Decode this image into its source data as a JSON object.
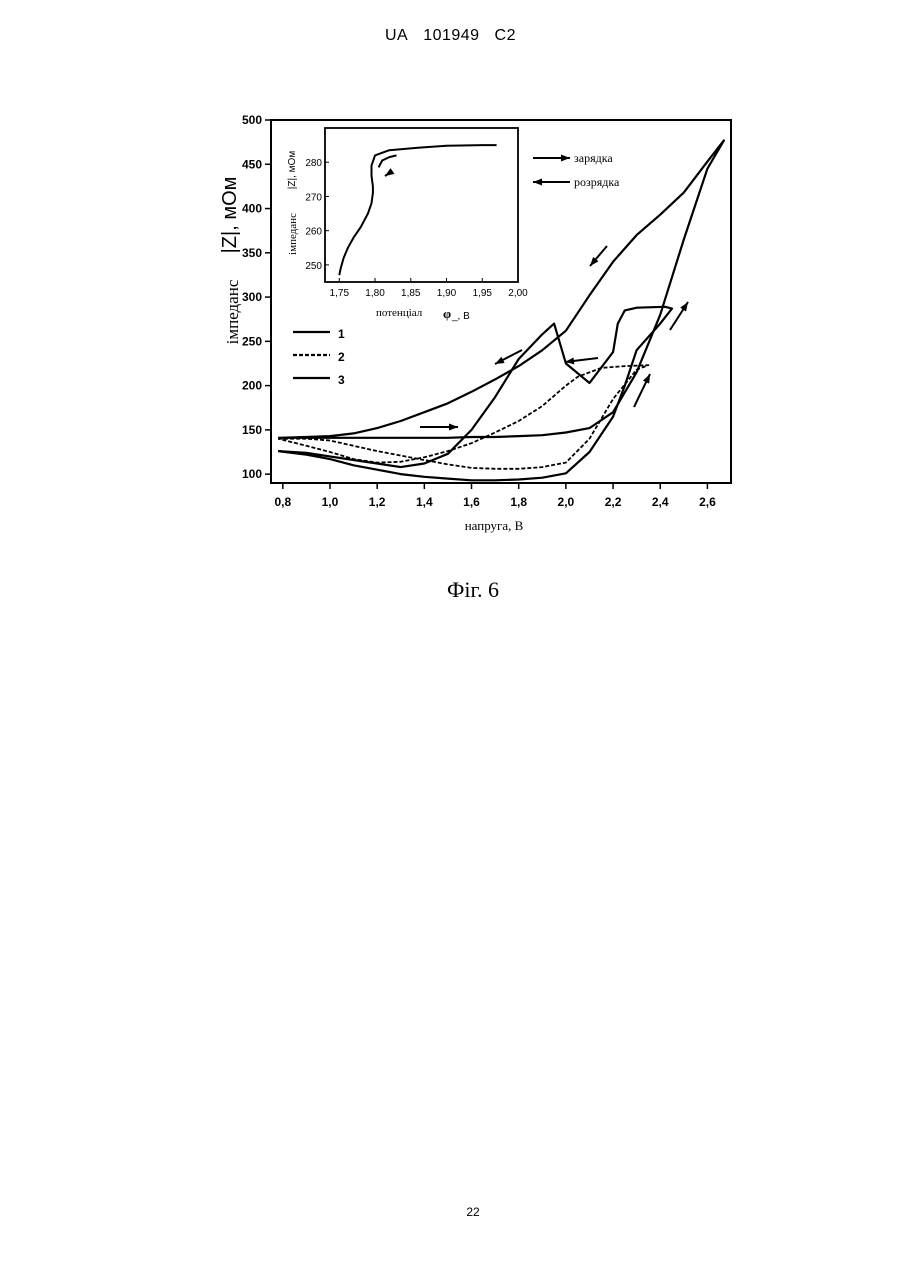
{
  "header": {
    "country": "UA",
    "number": "101949",
    "kind": "C2"
  },
  "caption": "Фіг. 6",
  "page_number": "22",
  "chart_data": [
    {
      "type": "line",
      "xlabel": "напруга, В",
      "ylabel_part1": "імпеданс",
      "ylabel_part2": "|Z|, мОм",
      "xlim": [
        0.75,
        2.7
      ],
      "ylim": [
        90,
        500
      ],
      "x_ticks": [
        "0,8",
        "1,0",
        "1,2",
        "1,4",
        "1,6",
        "1,8",
        "2,0",
        "2,2",
        "2,4",
        "2,6"
      ],
      "y_ticks": [
        "100",
        "150",
        "200",
        "250",
        "300",
        "350",
        "400",
        "450",
        "500"
      ],
      "legend": [
        "1",
        "2",
        "3"
      ],
      "series": [
        {
          "name": "1",
          "style": "solid",
          "x": [
            0.78,
            0.9,
            1.0,
            1.1,
            1.2,
            1.3,
            1.4,
            1.5,
            1.6,
            1.7,
            1.8,
            1.9,
            2.0,
            2.1,
            2.2,
            2.3,
            2.4,
            2.5,
            2.6,
            2.67,
            2.6,
            2.5,
            2.4,
            2.3,
            2.2,
            2.1,
            2.0,
            1.9,
            1.8,
            1.7,
            1.6,
            1.5,
            1.4,
            1.3,
            1.2,
            1.1,
            1.0,
            0.9,
            0.78
          ],
          "y": [
            141,
            141,
            141,
            141,
            141,
            141,
            141,
            141,
            142,
            142,
            143,
            144,
            147,
            152,
            170,
            215,
            280,
            365,
            445,
            477,
            453,
            418,
            393,
            370,
            340,
            302,
            262,
            240,
            222,
            207,
            193,
            180,
            170,
            160,
            152,
            146,
            143,
            142,
            141
          ]
        },
        {
          "name": "2",
          "style": "dashed",
          "x": [
            0.78,
            0.9,
            1.0,
            1.1,
            1.2,
            1.3,
            1.4,
            1.5,
            1.6,
            1.7,
            1.8,
            1.9,
            2.0,
            2.1,
            2.2,
            2.3,
            2.35,
            2.25,
            2.15,
            2.05,
            2.0,
            1.9,
            1.8,
            1.7,
            1.6,
            1.5,
            1.4,
            1.3,
            1.2,
            1.1,
            1.0,
            0.9,
            0.78
          ],
          "y": [
            140,
            140,
            138,
            132,
            126,
            121,
            116,
            111,
            107,
            106,
            106,
            108,
            113,
            140,
            185,
            218,
            223,
            222,
            220,
            210,
            200,
            177,
            160,
            147,
            135,
            126,
            119,
            114,
            113,
            117,
            125,
            132,
            140
          ]
        },
        {
          "name": "3",
          "style": "solid",
          "x": [
            0.78,
            0.9,
            1.0,
            1.1,
            1.2,
            1.3,
            1.4,
            1.5,
            1.6,
            1.7,
            1.8,
            1.9,
            2.0,
            2.1,
            2.2,
            2.25,
            2.3,
            2.4,
            2.45,
            2.42,
            2.3,
            2.25,
            2.22,
            2.2,
            2.1,
            2.0,
            1.95,
            1.9,
            1.8,
            1.7,
            1.6,
            1.5,
            1.4,
            1.3,
            1.2,
            1.1,
            1.0,
            0.9,
            0.78
          ],
          "y": [
            126,
            122,
            117,
            110,
            105,
            100,
            97,
            95,
            93,
            93,
            94,
            96,
            101,
            125,
            165,
            200,
            240,
            270,
            287,
            289,
            288,
            285,
            270,
            238,
            203,
            225,
            270,
            258,
            230,
            187,
            150,
            123,
            112,
            108,
            112,
            116,
            120,
            124,
            126
          ]
        }
      ],
      "annotations": [
        "arrow",
        "arrow",
        "arrow",
        "arrow",
        "arrow",
        "arrow"
      ]
    },
    {
      "type": "line",
      "xlabel_part1": "потенціал",
      "xlabel_part2": "φ",
      "xlabel_part3": "_, В",
      "ylabel_part1": "імпеданс",
      "ylabel_part2": "|Z|, мОм",
      "xlim": [
        1.73,
        2.0
      ],
      "ylim": [
        245,
        290
      ],
      "x_ticks": [
        "1,75",
        "1,80",
        "1,85",
        "1,90",
        "1,95",
        "2,00"
      ],
      "y_ticks": [
        "250",
        "260",
        "270",
        "280"
      ],
      "legend": [
        "зарядка",
        "розрядка"
      ],
      "series": [
        {
          "name": "зарядка",
          "style": "solid",
          "x": [
            1.75,
            1.752,
            1.756,
            1.762,
            1.77,
            1.78,
            1.79,
            1.795,
            1.797,
            1.797,
            1.795,
            1.795,
            1.8,
            1.82,
            1.86,
            1.9,
            1.95,
            1.97
          ],
          "y": [
            247,
            249,
            252,
            255,
            258,
            261,
            265,
            268,
            271,
            273,
            276,
            279,
            282,
            283.5,
            284.2,
            284.8,
            285,
            285
          ]
        },
        {
          "name": "розрядка",
          "style": "solid",
          "x": [
            1.805,
            1.81,
            1.82,
            1.83
          ],
          "y": [
            278.5,
            280.5,
            281.5,
            282
          ]
        }
      ]
    }
  ]
}
